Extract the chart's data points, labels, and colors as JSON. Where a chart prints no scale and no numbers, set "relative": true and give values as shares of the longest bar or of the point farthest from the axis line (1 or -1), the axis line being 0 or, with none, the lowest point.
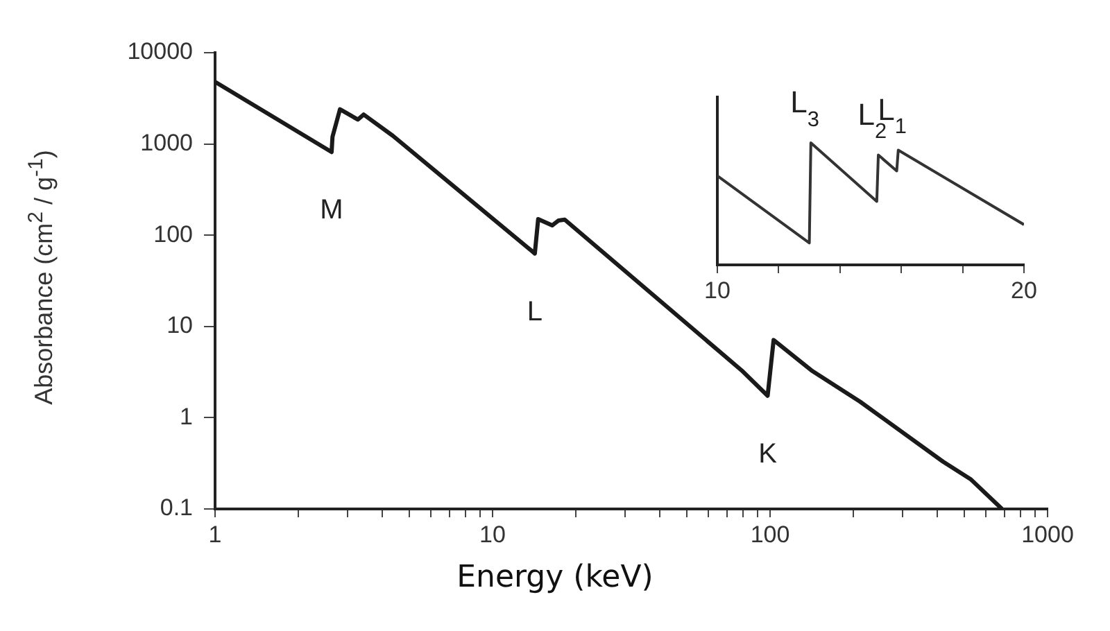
{
  "chart_data": [
    {
      "type": "line",
      "xlabel": "Energy (keV)",
      "ylabel": "Absorbance (cm$^{2}$ / g$^{-1}$)",
      "log": "xy",
      "marker": "none",
      "line_style": "solid",
      "legend": false,
      "x": [
        1,
        2.63,
        2.65,
        2.82,
        3.27,
        3.43,
        4.37,
        14.2,
        14.6,
        16.4,
        17.3,
        18.2,
        79,
        98,
        103,
        141,
        211,
        420,
        530,
        685
      ],
      "series": [
        {
          "color": "#1a1a1a",
          "values": [
            4800,
            815,
            1200,
            2400,
            1850,
            2100,
            1230,
            63,
            150,
            128,
            145,
            148,
            3.3,
            1.74,
            7.1,
            3.3,
            1.5,
            0.33,
            0.21,
            0.1
          ]
        }
      ],
      "xlim": [
        1,
        1000
      ],
      "ylim": [
        0.1,
        10000
      ],
      "xticks": [
        1,
        {
          "value": 2,
          "label": null
        },
        {
          "value": 3,
          "label": null
        },
        {
          "value": 4,
          "label": null
        },
        {
          "value": 5,
          "label": null
        },
        {
          "value": 6,
          "label": null
        },
        {
          "value": 7,
          "label": null
        },
        {
          "value": 8,
          "label": null
        },
        {
          "value": 9,
          "label": null
        },
        10,
        {
          "value": 20,
          "label": null
        },
        {
          "value": 30,
          "label": null
        },
        {
          "value": 40,
          "label": null
        },
        {
          "value": 50,
          "label": null
        },
        {
          "value": 60,
          "label": null
        },
        {
          "value": 70,
          "label": null
        },
        {
          "value": 80,
          "label": null
        },
        {
          "value": 90,
          "label": null
        },
        100,
        {
          "value": 200,
          "label": null
        },
        {
          "value": 300,
          "label": null
        },
        {
          "value": 400,
          "label": null
        },
        {
          "value": 500,
          "label": null
        },
        {
          "value": 600,
          "label": null
        },
        {
          "value": 700,
          "label": null
        },
        {
          "value": 800,
          "label": null
        },
        {
          "value": 900,
          "label": null
        },
        1000
      ],
      "yticks": [
        0.1,
        1,
        10,
        100,
        1000,
        10000
      ],
      "annotations": [
        {
          "text": "M",
          "x": 2.63,
          "y": 815
        },
        {
          "text": "L",
          "x": 14.2,
          "y": 63
        },
        {
          "text": "K",
          "x": 98,
          "y": 1.74
        }
      ]
    },
    {
      "type": "line",
      "relative": true,
      "marker": "none",
      "line_style": "solid",
      "legend": false,
      "x": [
        10,
        13.0,
        13.05,
        15.2,
        15.25,
        15.85,
        15.9,
        20
      ],
      "series": [
        {
          "color": "#333333",
          "values": [
            0.73,
            0.18,
            1,
            0.52,
            0.9,
            0.77,
            0.94,
            0.33
          ]
        }
      ],
      "xlim": [
        10,
        20
      ],
      "xticks": [
        10,
        {
          "value": 12,
          "label": null
        },
        {
          "value": 14,
          "label": null
        },
        {
          "value": 16,
          "label": null
        },
        {
          "value": 18,
          "label": null
        },
        20
      ],
      "annotations": [
        {
          "text": "L$_{3}$",
          "x": 13.05,
          "y": 1
        },
        {
          "text": "L$_{2}$",
          "x": 15.25,
          "y": 0.9
        },
        {
          "text": "L$_{1}$",
          "x": 15.9,
          "y": 0.94
        }
      ]
    }
  ]
}
